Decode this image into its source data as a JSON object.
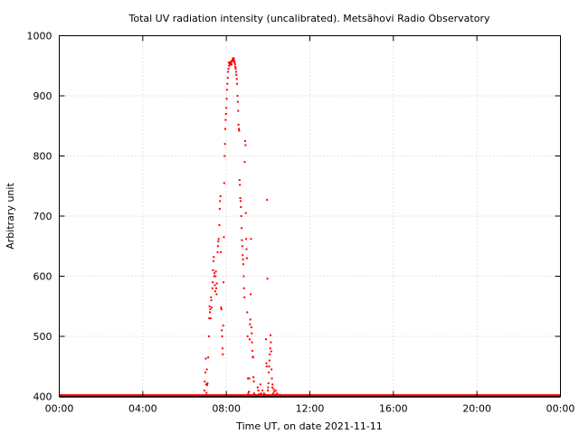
{
  "chart_data": {
    "type": "scatter",
    "title": "Total UV radiation intensity (uncalibrated). Metsähovi Radio Observatory",
    "xlabel": "Time UT, on date 2021-11-11",
    "ylabel": "Arbitrary unit",
    "xlim": [
      "00:00",
      "24:00"
    ],
    "ylim": [
      400,
      1000
    ],
    "x_ticks": [
      "00:00",
      "04:00",
      "08:00",
      "12:00",
      "16:00",
      "20:00",
      "00:00"
    ],
    "y_ticks": [
      400,
      500,
      600,
      700,
      800,
      900,
      1000
    ],
    "grid": true,
    "marker_color": "#ff0000",
    "series": [
      {
        "baseline": {
          "y": 400,
          "x_from": "00:00",
          "x_to": "24:00"
        },
        "points": [
          [
            "06:55",
            401
          ],
          [
            "06:57",
            410
          ],
          [
            "06:58",
            425
          ],
          [
            "07:00",
            440
          ],
          [
            "07:01",
            463
          ],
          [
            "07:02",
            420
          ],
          [
            "07:03",
            406
          ],
          [
            "07:04",
            445
          ],
          [
            "07:05",
            419
          ],
          [
            "07:06",
            422
          ],
          [
            "07:07",
            402
          ],
          [
            "07:08",
            465
          ],
          [
            "07:10",
            500
          ],
          [
            "07:11",
            530
          ],
          [
            "07:12",
            550
          ],
          [
            "07:13",
            540
          ],
          [
            "07:14",
            545
          ],
          [
            "07:15",
            530
          ],
          [
            "07:16",
            565
          ],
          [
            "07:17",
            560
          ],
          [
            "07:18",
            548
          ],
          [
            "07:20",
            580
          ],
          [
            "07:21",
            590
          ],
          [
            "07:22",
            610
          ],
          [
            "07:23",
            625
          ],
          [
            "07:24",
            632
          ],
          [
            "07:25",
            600
          ],
          [
            "07:26",
            605
          ],
          [
            "07:27",
            585
          ],
          [
            "07:28",
            575
          ],
          [
            "07:29",
            600
          ],
          [
            "07:30",
            608
          ],
          [
            "07:31",
            580
          ],
          [
            "07:32",
            570
          ],
          [
            "07:33",
            588
          ],
          [
            "07:35",
            640
          ],
          [
            "07:36",
            650
          ],
          [
            "07:37",
            658
          ],
          [
            "07:38",
            662
          ],
          [
            "07:40",
            685
          ],
          [
            "07:41",
            712
          ],
          [
            "07:42",
            725
          ],
          [
            "07:43",
            733
          ],
          [
            "07:44",
            640
          ],
          [
            "07:45",
            548
          ],
          [
            "07:46",
            545
          ],
          [
            "07:47",
            510
          ],
          [
            "07:48",
            500
          ],
          [
            "07:49",
            480
          ],
          [
            "07:50",
            470
          ],
          [
            "07:51",
            518
          ],
          [
            "07:52",
            590
          ],
          [
            "07:53",
            665
          ],
          [
            "07:54",
            755
          ],
          [
            "07:55",
            800
          ],
          [
            "07:56",
            820
          ],
          [
            "07:57",
            845
          ],
          [
            "07:58",
            860
          ],
          [
            "07:59",
            870
          ],
          [
            "08:00",
            880
          ],
          [
            "08:01",
            895
          ],
          [
            "08:02",
            910
          ],
          [
            "08:03",
            920
          ],
          [
            "08:04",
            930
          ],
          [
            "08:05",
            940
          ],
          [
            "08:06",
            945
          ],
          [
            "08:07",
            955
          ],
          [
            "08:08",
            950
          ],
          [
            "08:09",
            955
          ],
          [
            "08:10",
            952
          ],
          [
            "08:11",
            956
          ],
          [
            "08:12",
            955
          ],
          [
            "08:13",
            957
          ],
          [
            "08:14",
            955
          ],
          [
            "08:15",
            952
          ],
          [
            "08:16",
            958
          ],
          [
            "08:18",
            960
          ],
          [
            "08:19",
            962
          ],
          [
            "08:20",
            958
          ],
          [
            "08:21",
            963
          ],
          [
            "08:22",
            960
          ],
          [
            "08:23",
            957
          ],
          [
            "08:24",
            955
          ],
          [
            "08:25",
            952
          ],
          [
            "08:26",
            948
          ],
          [
            "08:27",
            945
          ],
          [
            "08:28",
            940
          ],
          [
            "08:29",
            935
          ],
          [
            "08:30",
            928
          ],
          [
            "08:31",
            920
          ],
          [
            "08:32",
            900
          ],
          [
            "08:33",
            890
          ],
          [
            "08:34",
            875
          ],
          [
            "08:35",
            852
          ],
          [
            "08:36",
            845
          ],
          [
            "08:37",
            842
          ],
          [
            "08:38",
            760
          ],
          [
            "08:39",
            752
          ],
          [
            "08:40",
            730
          ],
          [
            "08:41",
            725
          ],
          [
            "08:42",
            715
          ],
          [
            "08:43",
            700
          ],
          [
            "08:44",
            680
          ],
          [
            "08:45",
            660
          ],
          [
            "08:46",
            650
          ],
          [
            "08:47",
            635
          ],
          [
            "08:48",
            628
          ],
          [
            "08:49",
            620
          ],
          [
            "08:50",
            600
          ],
          [
            "08:51",
            580
          ],
          [
            "08:52",
            565
          ],
          [
            "08:53",
            790
          ],
          [
            "08:54",
            825
          ],
          [
            "08:55",
            818
          ],
          [
            "08:56",
            705
          ],
          [
            "08:57",
            662
          ],
          [
            "08:58",
            645
          ],
          [
            "08:59",
            630
          ],
          [
            "09:00",
            540
          ],
          [
            "09:01",
            500
          ],
          [
            "09:02",
            430
          ],
          [
            "09:03",
            405
          ],
          [
            "09:04",
            402
          ],
          [
            "09:05",
            408
          ],
          [
            "09:06",
            430
          ],
          [
            "09:07",
            495
          ],
          [
            "09:08",
            520
          ],
          [
            "09:09",
            528
          ],
          [
            "09:10",
            570
          ],
          [
            "09:11",
            662
          ],
          [
            "09:12",
            515
          ],
          [
            "09:13",
            505
          ],
          [
            "09:14",
            490
          ],
          [
            "09:15",
            476
          ],
          [
            "09:16",
            465
          ],
          [
            "09:17",
            466
          ],
          [
            "09:18",
            432
          ],
          [
            "09:19",
            425
          ],
          [
            "09:20",
            405
          ],
          [
            "09:21",
            403
          ],
          [
            "09:22",
            401
          ],
          [
            "09:24",
            402
          ],
          [
            "09:30",
            415
          ],
          [
            "09:32",
            410
          ],
          [
            "09:34",
            404
          ],
          [
            "09:36",
            402
          ],
          [
            "09:38",
            420
          ],
          [
            "09:40",
            405
          ],
          [
            "09:42",
            402
          ],
          [
            "09:44",
            410
          ],
          [
            "09:46",
            402
          ],
          [
            "09:48",
            405
          ],
          [
            "09:50",
            401
          ],
          [
            "09:52",
            403
          ],
          [
            "09:54",
            495
          ],
          [
            "09:55",
            455
          ],
          [
            "09:56",
            450
          ],
          [
            "09:57",
            727
          ],
          [
            "09:58",
            596
          ],
          [
            "09:59",
            410
          ],
          [
            "10:00",
            415
          ],
          [
            "10:01",
            422
          ],
          [
            "10:02",
            440
          ],
          [
            "10:03",
            450
          ],
          [
            "10:04",
            460
          ],
          [
            "10:05",
            470
          ],
          [
            "10:06",
            480
          ],
          [
            "10:07",
            502
          ],
          [
            "10:08",
            490
          ],
          [
            "10:09",
            475
          ],
          [
            "10:10",
            445
          ],
          [
            "10:11",
            430
          ],
          [
            "10:12",
            415
          ],
          [
            "10:13",
            420
          ],
          [
            "10:14",
            405
          ],
          [
            "10:16",
            412
          ],
          [
            "10:18",
            408
          ],
          [
            "10:20",
            403
          ],
          [
            "10:22",
            410
          ],
          [
            "10:24",
            402
          ],
          [
            "10:26",
            405
          ],
          [
            "10:28",
            401
          ],
          [
            "10:30",
            402
          ],
          [
            "10:32",
            401
          ],
          [
            "10:34",
            403
          ],
          [
            "10:36",
            401
          ],
          [
            "10:40",
            402
          ],
          [
            "10:45",
            401
          ],
          [
            "10:50",
            401
          ]
        ]
      }
    ]
  }
}
